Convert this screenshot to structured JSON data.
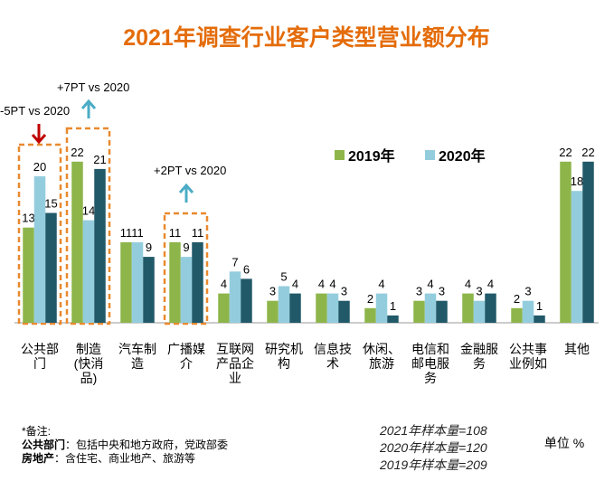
{
  "chart_data": {
    "type": "bar",
    "title": "2021年调查行业客户类型营业额分布",
    "categories": [
      "公共部\n门",
      "制造\n(快消\n品)",
      "汽车制\n造",
      "广播媒\n介",
      "互联网\n产品企\n业",
      "研究机\n构",
      "信息技\n术",
      "休闲、\n旅游",
      "电信和\n邮电服\n务",
      "金融服\n务",
      "公共事\n业例如",
      "其他"
    ],
    "series": [
      {
        "name": "2019年",
        "color": "#8db54a",
        "values": [
          13,
          22,
          11,
          11,
          4,
          3,
          4,
          2,
          3,
          4,
          2,
          22
        ]
      },
      {
        "name": "2020年",
        "color": "#93cddd",
        "values": [
          20,
          14,
          11,
          9,
          7,
          5,
          4,
          4,
          4,
          3,
          3,
          18
        ]
      },
      {
        "color": "#215968",
        "values": [
          15,
          21,
          9,
          11,
          6,
          4,
          3,
          1,
          3,
          4,
          1,
          22
        ]
      }
    ],
    "annotations": [
      "-5PT vs 2020",
      "+7PT vs 2020",
      "+2PT vs 2020"
    ],
    "notes": {
      "heading": "*备注:",
      "items": [
        {
          "term": "公共部门",
          "text": "：包括中央和地方政府，党政部委"
        },
        {
          "term": "房地产",
          "text": "：含住宅、商业地产、旅游等"
        }
      ]
    },
    "sample_sizes": [
      "2021年样本量=108",
      "2020年样本量=120",
      "2019年样本量=209"
    ],
    "unit": "单位 %"
  }
}
